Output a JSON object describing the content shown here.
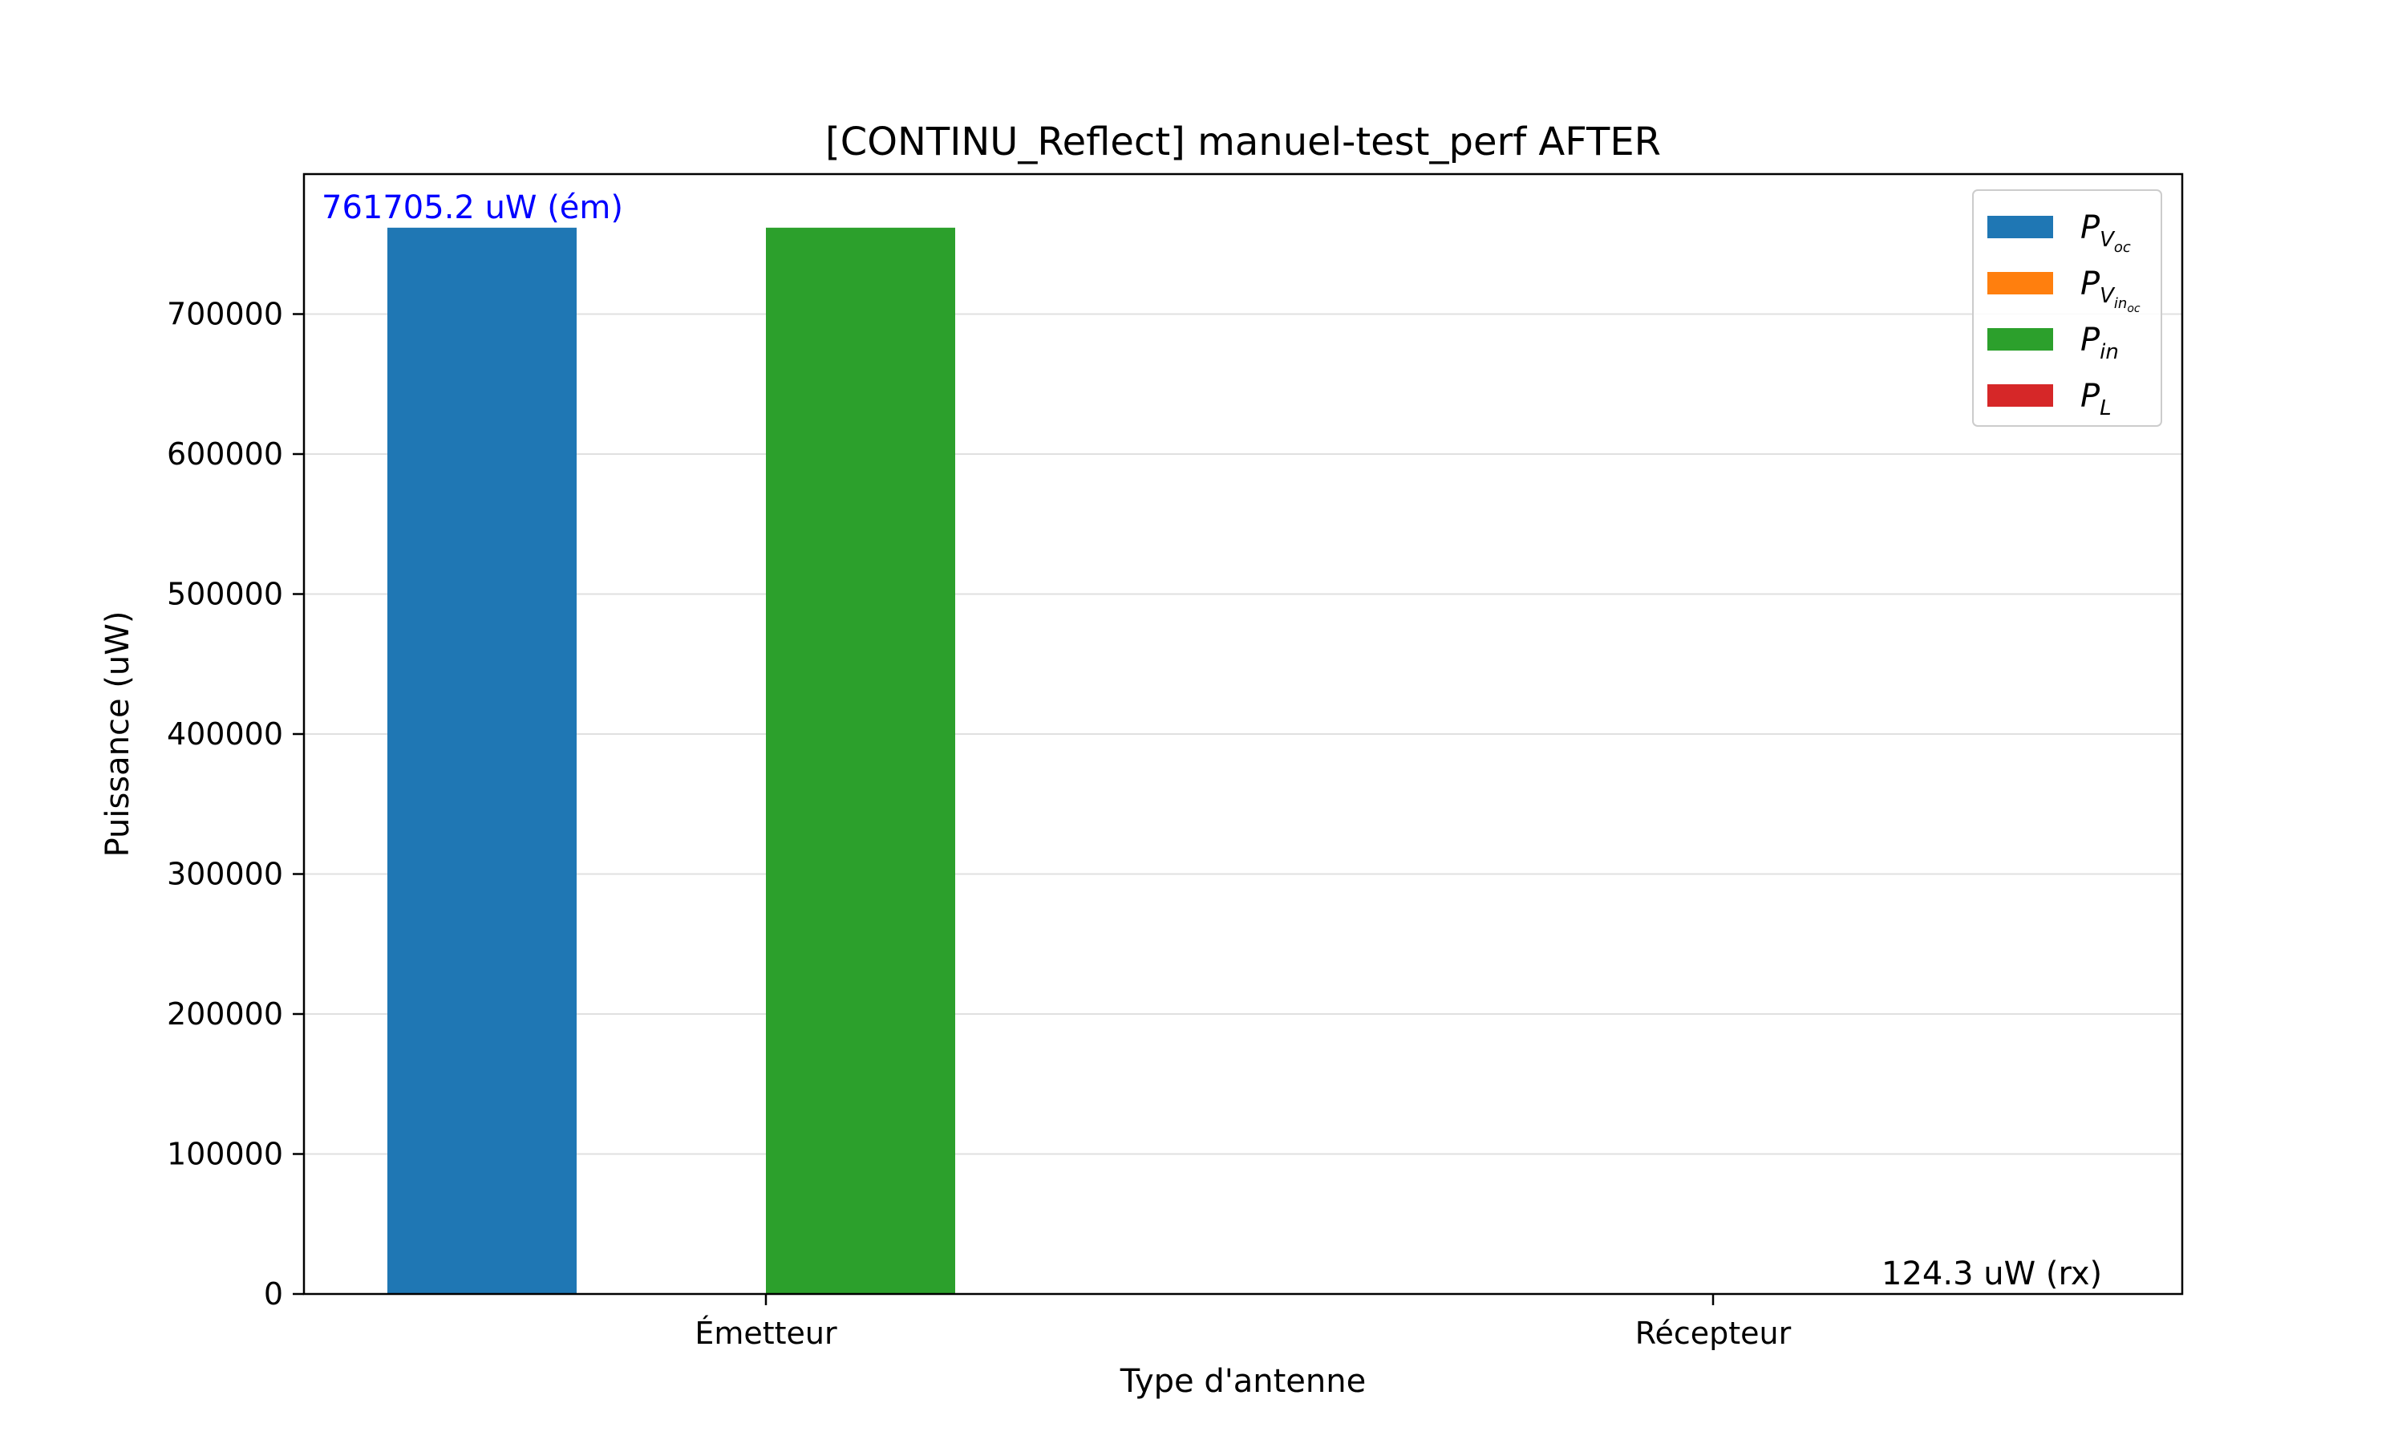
{
  "chart_data": {
    "type": "bar",
    "title": "[CONTINU_Reflect] manuel-test_perf AFTER",
    "xlabel": "Type d'antenne",
    "ylabel": "Puissance (uW)",
    "categories": [
      "Émetteur",
      "Récepteur"
    ],
    "ylim": [
      0,
      800000
    ],
    "yticks": [
      0,
      100000,
      200000,
      300000,
      400000,
      500000,
      600000,
      700000
    ],
    "ytick_labels": [
      "0",
      "100000",
      "200000",
      "300000",
      "400000",
      "500000",
      "600000",
      "700000"
    ],
    "grid": "horizontal",
    "legend_position": "top-right",
    "series": [
      {
        "name": "P_{V_oc}",
        "legend_main": "P",
        "legend_sub": "V",
        "legend_subsub": "oc",
        "color": "#1f77b4",
        "values": [
          761705.2,
          124.3
        ]
      },
      {
        "name": "P_{V_in_oc}",
        "legend_main": "P",
        "legend_sub": "V",
        "legend_subsub": "in",
        "legend_subsubsub": "oc",
        "color": "#ff7f0e",
        "values": [
          0,
          0
        ]
      },
      {
        "name": "P_in",
        "legend_main": "P",
        "legend_sub": "in",
        "color": "#2ca02c",
        "values": [
          761705.2,
          0
        ]
      },
      {
        "name": "P_L",
        "legend_main": "P",
        "legend_sub": "L",
        "color": "#d62728",
        "values": [
          0,
          0
        ]
      }
    ],
    "annotations": [
      {
        "text": "761705.2 uW (ém)",
        "category": 0,
        "y": 761705.2,
        "color": "#0000ff"
      },
      {
        "text": "124.3 uW (rx)",
        "category": 1,
        "y": 124.3,
        "color": "#000000"
      }
    ]
  }
}
